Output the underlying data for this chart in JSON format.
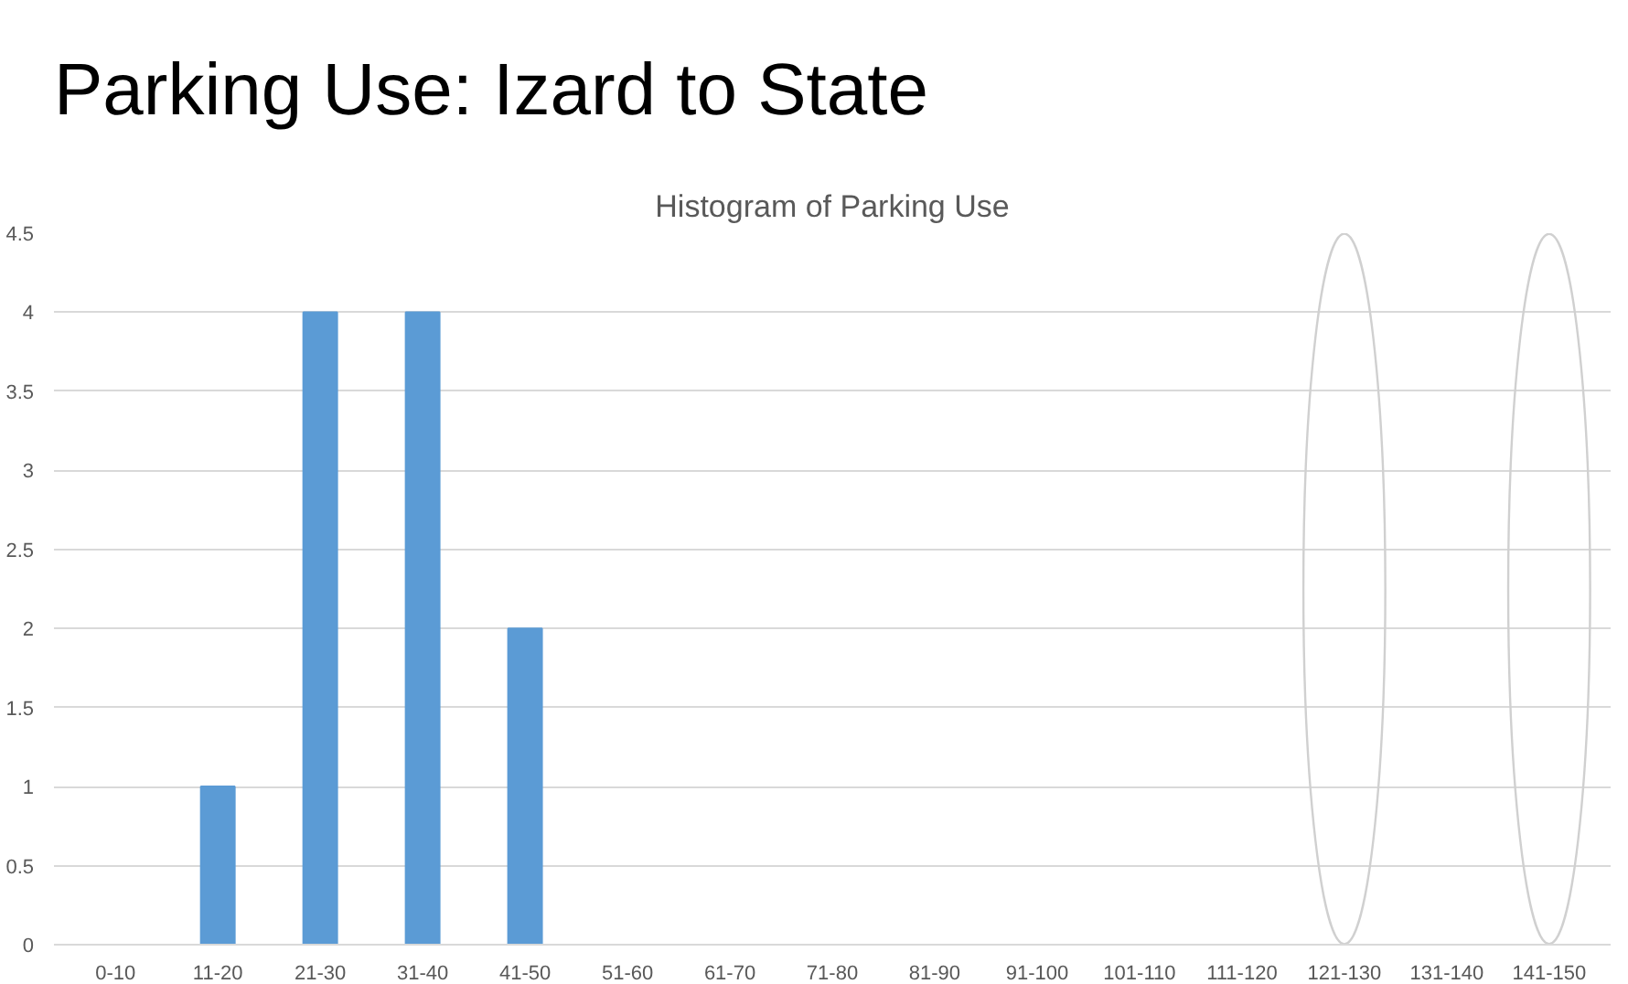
{
  "chart_data": {
    "type": "bar",
    "title": "Parking Use: Izard to State",
    "subtitle": "Histogram of Parking Use",
    "categories": [
      "0-10",
      "11-20",
      "21-30",
      "31-40",
      "41-50",
      "51-60",
      "61-70",
      "71-80",
      "81-90",
      "91-100",
      "101-110",
      "111-120",
      "121-130",
      "131-140",
      "141-150"
    ],
    "values": [
      0,
      1,
      4,
      4,
      2,
      0,
      0,
      0,
      0,
      0,
      0,
      0,
      0,
      0,
      0
    ],
    "color": "#5b9bd5",
    "ylim": [
      0,
      4.5
    ],
    "yticks": [
      0,
      0.5,
      1,
      1.5,
      2,
      2.5,
      3,
      3.5,
      4,
      4.5
    ],
    "grid": "y"
  }
}
